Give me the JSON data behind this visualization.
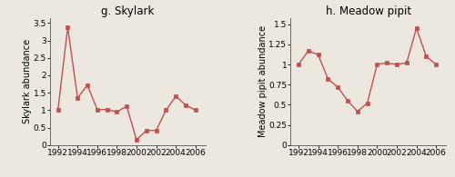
{
  "skylark": {
    "title": "g. Skylark",
    "ylabel": "Skylark abundance",
    "years": [
      1992,
      1993,
      1994,
      1995,
      1996,
      1997,
      1998,
      1999,
      2000,
      2001,
      2002,
      2003,
      2004,
      2005,
      2006
    ],
    "values": [
      1.0,
      3.38,
      1.35,
      1.72,
      1.02,
      1.02,
      0.95,
      1.12,
      0.15,
      0.42,
      0.42,
      1.0,
      1.4,
      1.15,
      1.0
    ],
    "ylim": [
      0,
      3.65
    ],
    "yticks": [
      0,
      0.5,
      1,
      1.5,
      2,
      2.5,
      3,
      3.5
    ],
    "ytick_labels": [
      "0",
      "0.5",
      "1",
      "1.5",
      "2",
      "2.5",
      "3",
      "3.5"
    ]
  },
  "meadow_pipit": {
    "title": "h. Meadow pipit",
    "ylabel": "Meadow pipit abundance",
    "years": [
      1992,
      1993,
      1994,
      1995,
      1996,
      1997,
      1998,
      1999,
      2000,
      2001,
      2002,
      2003,
      2004,
      2005,
      2006
    ],
    "values": [
      1.0,
      1.17,
      1.12,
      0.82,
      0.72,
      0.55,
      0.42,
      0.52,
      1.0,
      1.02,
      1.0,
      1.02,
      1.45,
      1.1,
      1.0
    ],
    "ylim": [
      0,
      1.58
    ],
    "yticks": [
      0,
      0.25,
      0.5,
      0.75,
      1.0,
      1.25,
      1.5
    ],
    "ytick_labels": [
      "0",
      "0.25",
      "0.5",
      "0.75",
      "1",
      "1.25",
      "1.5"
    ]
  },
  "line_color": "#c0504d",
  "marker": "s",
  "markersize": 2.8,
  "linewidth": 1.0,
  "bg_color": "#ede8df",
  "title_fontsize": 8.5,
  "label_fontsize": 7.0,
  "tick_fontsize": 6.5,
  "xticks": [
    1992,
    1994,
    1996,
    1998,
    2000,
    2002,
    2004,
    2006
  ],
  "xtick_labels": [
    "1992",
    "1994",
    "1996",
    "1998",
    "2000",
    "2002",
    "2004",
    "2006"
  ]
}
